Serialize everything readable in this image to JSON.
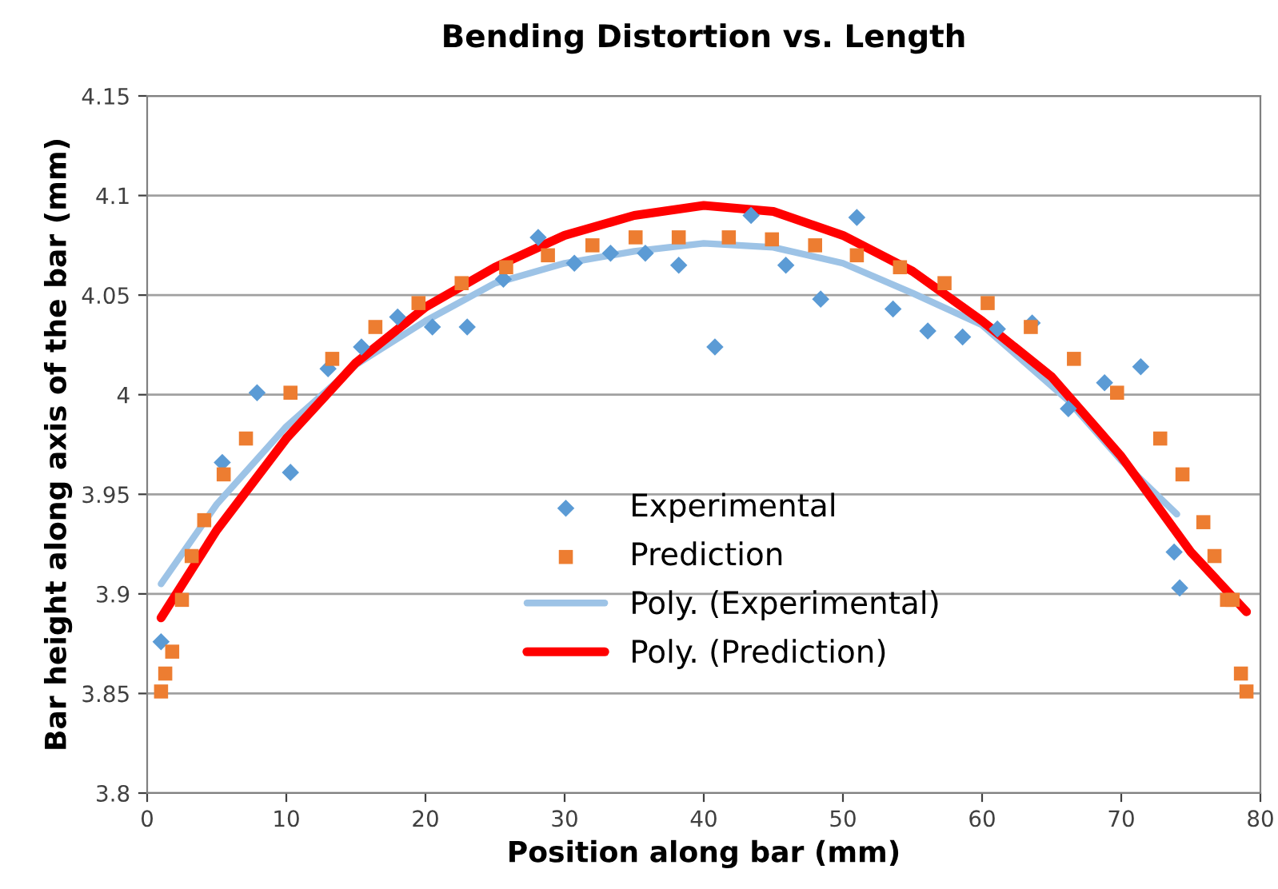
{
  "chart_data": {
    "type": "scatter",
    "title": "Bending Distortion vs. Length",
    "xlabel": "Position along bar (mm)",
    "ylabel": "Bar height along axis of the bar (mm)",
    "xlim": [
      0,
      80
    ],
    "xticks": [
      0,
      10,
      20,
      30,
      40,
      50,
      60,
      70,
      80
    ],
    "ylim": [
      3.8,
      4.15
    ],
    "yticks": [
      3.8,
      3.85,
      3.9,
      3.95,
      4,
      4.05,
      4.1,
      4.15
    ],
    "grid": "y",
    "legend": "bottom",
    "series": [
      {
        "name": "Experimental",
        "marker": "diamond",
        "color": "#5b9bd5",
        "x": [
          1.0,
          5.4,
          7.9,
          10.3,
          13.0,
          15.4,
          18.0,
          20.5,
          23.0,
          25.6,
          28.1,
          30.7,
          33.3,
          35.8,
          38.2,
          40.8,
          43.4,
          45.9,
          48.4,
          51.0,
          53.6,
          56.1,
          58.6,
          61.1,
          63.6,
          66.2,
          68.8,
          71.4,
          73.8,
          74.2
        ],
        "values": [
          3.876,
          3.966,
          4.001,
          3.961,
          4.013,
          4.024,
          4.039,
          4.034,
          4.034,
          4.058,
          4.079,
          4.066,
          4.071,
          4.071,
          4.065,
          4.024,
          4.09,
          4.065,
          4.048,
          4.089,
          4.043,
          4.032,
          4.029,
          4.033,
          4.036,
          3.993,
          4.006,
          4.014,
          3.921,
          3.903
        ]
      },
      {
        "name": "Prediction",
        "marker": "square",
        "color": "#ed7d31",
        "x": [
          1.0,
          1.3,
          1.8,
          2.5,
          3.2,
          4.1,
          5.5,
          7.1,
          10.3,
          13.3,
          16.4,
          19.5,
          22.6,
          25.8,
          28.8,
          32.0,
          35.1,
          38.2,
          41.8,
          44.9,
          48.0,
          51.0,
          54.1,
          57.3,
          60.4,
          63.5,
          66.6,
          69.7,
          72.8,
          74.4,
          75.9,
          76.7,
          77.6,
          78.0,
          78.6,
          79.0
        ],
        "values": [
          3.851,
          3.86,
          3.871,
          3.897,
          3.919,
          3.937,
          3.96,
          3.978,
          4.001,
          4.018,
          4.034,
          4.046,
          4.056,
          4.064,
          4.07,
          4.075,
          4.079,
          4.079,
          4.079,
          4.078,
          4.075,
          4.07,
          4.064,
          4.056,
          4.046,
          4.034,
          4.018,
          4.001,
          3.978,
          3.96,
          3.936,
          3.919,
          3.897,
          3.897,
          3.86,
          3.851
        ]
      },
      {
        "name": "Poly. (Experimental)",
        "type": "line",
        "marker": "none",
        "line_style": "solid",
        "color": "#9dc3e6",
        "x": [
          1,
          5,
          10,
          15,
          20,
          25,
          30,
          35,
          40,
          45,
          50,
          55,
          60,
          66.2,
          70,
          74
        ],
        "values": [
          3.905,
          3.945,
          3.984,
          4.015,
          4.037,
          4.056,
          4.066,
          4.072,
          4.076,
          4.074,
          4.066,
          4.051,
          4.035,
          3.997,
          3.967,
          3.94
        ]
      },
      {
        "name": "Poly. (Prediction)",
        "type": "line",
        "marker": "none",
        "line_style": "solid",
        "color": "#ff0000",
        "x": [
          1,
          5,
          10,
          15,
          20,
          25,
          30,
          35,
          40,
          45,
          50,
          55,
          60,
          65,
          70,
          75,
          79
        ],
        "values": [
          3.888,
          3.932,
          3.978,
          4.016,
          4.044,
          4.064,
          4.08,
          4.09,
          4.095,
          4.092,
          4.08,
          4.062,
          4.037,
          4.009,
          3.969,
          3.921,
          3.891
        ]
      }
    ]
  }
}
